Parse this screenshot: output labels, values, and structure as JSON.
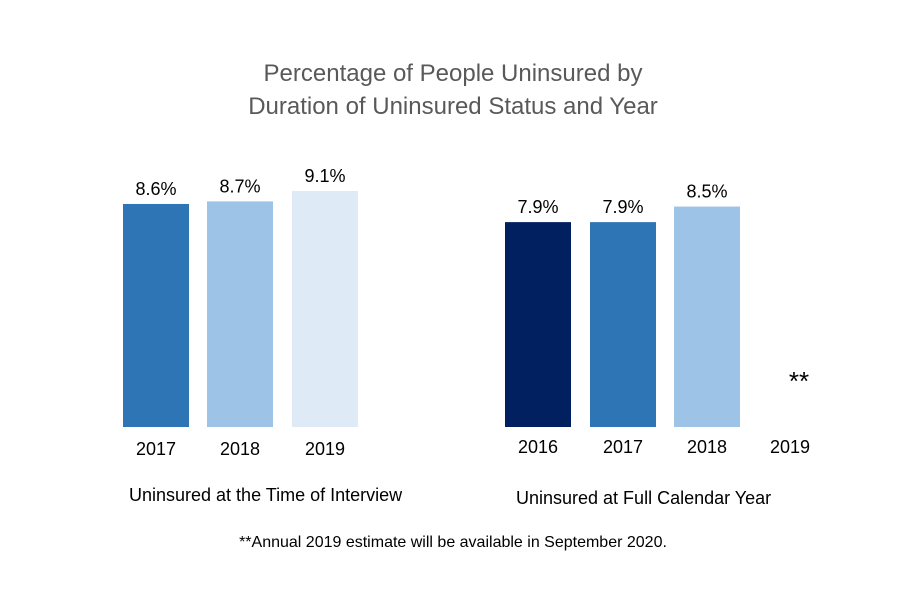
{
  "chart_data": {
    "type": "bar",
    "title_line1": "Percentage of People Uninsured by",
    "title_line2": "Duration of Uninsured Status and Year",
    "footnote": "**Annual 2019 estimate will be available in September 2020.",
    "groups": [
      {
        "label": "Uninsured at the Time of Interview",
        "categories": [
          "2017",
          "2018",
          "2019"
        ],
        "values": [
          8.6,
          8.7,
          9.1
        ],
        "value_labels": [
          "8.6%",
          "8.7%",
          "9.1%"
        ],
        "colors": [
          "#2E75B6",
          "#9DC3E6",
          "#DEEBF7"
        ]
      },
      {
        "label": "Uninsured at Full Calendar Year",
        "categories": [
          "2016",
          "2017",
          "2018",
          "2019"
        ],
        "values": [
          7.9,
          7.9,
          8.5,
          null
        ],
        "value_labels": [
          "7.9%",
          "7.9%",
          "8.5%",
          "**"
        ],
        "colors": [
          "#002060",
          "#2E75B6",
          "#9DC3E6",
          "#FFFFFF"
        ]
      }
    ],
    "ylim": [
      0,
      9.1
    ],
    "grid": false,
    "legend": "none"
  }
}
